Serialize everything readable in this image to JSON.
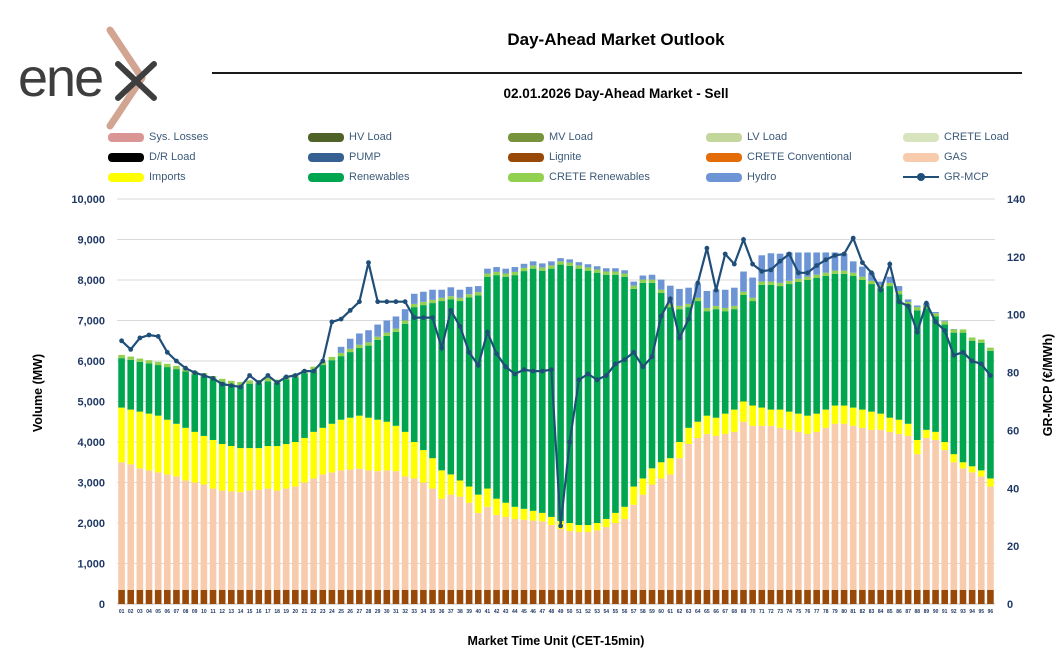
{
  "logo": {
    "text": "ene"
  },
  "header": {
    "title": "Day-Ahead Market Outlook",
    "subtitle": "02.01.2026  Day-Ahead Market - Sell"
  },
  "legend": {
    "items": [
      {
        "label": "Sys. Losses",
        "color": "#D99694",
        "type": "swatch"
      },
      {
        "label": "HV Load",
        "color": "#4F6228",
        "type": "swatch"
      },
      {
        "label": "MV Load",
        "color": "#77933C",
        "type": "swatch"
      },
      {
        "label": "LV Load",
        "color": "#C3D69B",
        "type": "swatch"
      },
      {
        "label": "CRETE Load",
        "color": "#D7E4BD",
        "type": "swatch"
      },
      {
        "label": "D/R Load",
        "color": "#000000",
        "type": "swatch"
      },
      {
        "label": "PUMP",
        "color": "#376092",
        "type": "swatch"
      },
      {
        "label": "Lignite",
        "color": "#984807",
        "type": "swatch"
      },
      {
        "label": "CRETE Conventional",
        "color": "#E36C09",
        "type": "swatch"
      },
      {
        "label": "GAS",
        "color": "#F8CBAD",
        "type": "swatch"
      },
      {
        "label": "Imports",
        "color": "#FFFF00",
        "type": "swatch"
      },
      {
        "label": "Renewables",
        "color": "#00A64F",
        "type": "swatch"
      },
      {
        "label": "CRETE Renewables",
        "color": "#92D050",
        "type": "swatch"
      },
      {
        "label": "Hydro",
        "color": "#6D95D5",
        "type": "swatch"
      },
      {
        "label": "GR-MCP",
        "color": "#1F4E79",
        "type": "line"
      }
    ]
  },
  "chart_data": {
    "type": "bar",
    "subtype": "stacked-bars-with-line",
    "grid": true,
    "x_label": "Market Time Unit (CET-15min)",
    "y_left": {
      "title": "Volume (MW)",
      "min": 0,
      "max": 10000,
      "step": 1000
    },
    "y_right": {
      "title": "GR-MCP (€/MWh)",
      "min": 0,
      "max": 140,
      "step": 20
    },
    "categories": [
      "01",
      "02",
      "03",
      "04",
      "05",
      "06",
      "07",
      "08",
      "09",
      "10",
      "11",
      "12",
      "13",
      "14",
      "15",
      "16",
      "17",
      "18",
      "19",
      "20",
      "21",
      "22",
      "23",
      "24",
      "25",
      "26",
      "27",
      "28",
      "29",
      "30",
      "31",
      "32",
      "33",
      "34",
      "35",
      "36",
      "37",
      "38",
      "39",
      "40",
      "41",
      "42",
      "43",
      "44",
      "45",
      "46",
      "47",
      "48",
      "49",
      "50",
      "51",
      "52",
      "53",
      "54",
      "55",
      "56",
      "57",
      "58",
      "59",
      "60",
      "61",
      "62",
      "63",
      "64",
      "65",
      "66",
      "67",
      "68",
      "69",
      "70",
      "71",
      "72",
      "73",
      "74",
      "75",
      "76",
      "77",
      "78",
      "79",
      "80",
      "81",
      "82",
      "83",
      "84",
      "85",
      "86",
      "87",
      "88",
      "89",
      "90",
      "91",
      "92",
      "93",
      "94",
      "95",
      "96"
    ],
    "bar_series": [
      {
        "name": "Lignite",
        "color": "#984807",
        "values": [
          350,
          350,
          350,
          350,
          350,
          350,
          350,
          350,
          350,
          350,
          350,
          350,
          350,
          350,
          350,
          350,
          350,
          350,
          350,
          350,
          350,
          350,
          350,
          350,
          350,
          350,
          350,
          350,
          350,
          350,
          350,
          350,
          350,
          350,
          350,
          350,
          350,
          350,
          350,
          350,
          350,
          350,
          350,
          350,
          350,
          350,
          350,
          350,
          350,
          350,
          350,
          350,
          350,
          350,
          350,
          350,
          350,
          350,
          350,
          350,
          350,
          350,
          350,
          350,
          350,
          350,
          350,
          350,
          350,
          350,
          350,
          350,
          350,
          350,
          350,
          350,
          350,
          350,
          350,
          350,
          350,
          350,
          350,
          350,
          350,
          350,
          350,
          350,
          350,
          350,
          350,
          350,
          350,
          350,
          350,
          350
        ]
      },
      {
        "name": "GAS",
        "color": "#F8CBAD",
        "values": [
          3150,
          3100,
          3000,
          2950,
          2900,
          2850,
          2800,
          2700,
          2650,
          2600,
          2500,
          2450,
          2430,
          2410,
          2450,
          2470,
          2500,
          2450,
          2500,
          2550,
          2650,
          2750,
          2850,
          2900,
          2950,
          2970,
          2990,
          2950,
          2930,
          2950,
          2930,
          2800,
          2750,
          2650,
          2500,
          2250,
          2350,
          2300,
          2150,
          1900,
          2050,
          1850,
          1800,
          1750,
          1730,
          1710,
          1690,
          1600,
          1500,
          1450,
          1430,
          1430,
          1470,
          1550,
          1650,
          1750,
          2100,
          2350,
          2600,
          2750,
          2850,
          3250,
          3600,
          3750,
          3850,
          3800,
          3850,
          3900,
          4150,
          4050,
          4050,
          4050,
          4000,
          3950,
          3900,
          3850,
          3900,
          4000,
          4100,
          4100,
          4050,
          4000,
          3950,
          3950,
          3900,
          3850,
          3800,
          3350,
          3750,
          3700,
          3450,
          3150,
          3000,
          2900,
          2800,
          2550
        ]
      },
      {
        "name": "Imports",
        "color": "#FFFF00",
        "values": [
          1350,
          1350,
          1400,
          1400,
          1400,
          1350,
          1300,
          1300,
          1250,
          1200,
          1200,
          1150,
          1120,
          1090,
          1050,
          1030,
          1050,
          1100,
          1100,
          1100,
          1100,
          1150,
          1150,
          1200,
          1250,
          1280,
          1310,
          1300,
          1270,
          1200,
          1120,
          1100,
          900,
          800,
          750,
          700,
          500,
          400,
          400,
          450,
          450,
          400,
          350,
          300,
          270,
          240,
          210,
          200,
          200,
          200,
          170,
          170,
          180,
          200,
          250,
          300,
          450,
          400,
          400,
          400,
          400,
          400,
          400,
          400,
          450,
          450,
          500,
          550,
          500,
          500,
          450,
          400,
          450,
          450,
          450,
          450,
          450,
          450,
          450,
          450,
          450,
          450,
          450,
          400,
          350,
          350,
          300,
          350,
          200,
          200,
          200,
          200,
          150,
          150,
          150,
          200
        ]
      },
      {
        "name": "Renewables",
        "color": "#00A64F",
        "values": [
          1220,
          1230,
          1230,
          1240,
          1250,
          1300,
          1350,
          1390,
          1420,
          1470,
          1500,
          1530,
          1530,
          1550,
          1590,
          1600,
          1600,
          1560,
          1600,
          1600,
          1600,
          1530,
          1550,
          1570,
          1570,
          1620,
          1670,
          1780,
          1970,
          2120,
          2320,
          2670,
          3330,
          3580,
          3830,
          4180,
          4320,
          4430,
          4670,
          4920,
          5230,
          5520,
          5580,
          5720,
          5870,
          5980,
          5980,
          6130,
          6330,
          6350,
          6330,
          6280,
          6180,
          6030,
          5880,
          5680,
          4880,
          4830,
          4580,
          4180,
          3730,
          3280,
          2980,
          2980,
          2580,
          2680,
          2530,
          2480,
          2630,
          2580,
          3030,
          3080,
          3050,
          3150,
          3250,
          3350,
          3350,
          3300,
          3250,
          3250,
          3250,
          3200,
          3150,
          3100,
          3250,
          3100,
          2930,
          3200,
          3000,
          2850,
          2900,
          3000,
          3200,
          3100,
          3150,
          3150
        ]
      },
      {
        "name": "CRETE Renewables",
        "color": "#92D050",
        "values": [
          80,
          80,
          80,
          80,
          80,
          80,
          80,
          80,
          80,
          80,
          80,
          80,
          80,
          80,
          80,
          80,
          80,
          80,
          80,
          80,
          80,
          80,
          80,
          80,
          80,
          80,
          80,
          80,
          80,
          80,
          80,
          80,
          80,
          80,
          80,
          80,
          80,
          80,
          80,
          80,
          80,
          80,
          80,
          80,
          80,
          80,
          80,
          80,
          80,
          80,
          80,
          80,
          80,
          80,
          80,
          80,
          80,
          80,
          80,
          80,
          80,
          80,
          80,
          80,
          80,
          80,
          80,
          80,
          80,
          80,
          80,
          80,
          80,
          80,
          80,
          80,
          80,
          80,
          80,
          80,
          80,
          80,
          80,
          80,
          80,
          80,
          80,
          80,
          80,
          80,
          80,
          80,
          80,
          80,
          80,
          80
        ]
      },
      {
        "name": "Hydro",
        "color": "#6D95D5",
        "values": [
          0,
          0,
          0,
          0,
          0,
          0,
          0,
          0,
          0,
          0,
          0,
          0,
          0,
          0,
          0,
          0,
          0,
          0,
          0,
          0,
          0,
          0,
          0,
          0,
          150,
          250,
          280,
          300,
          300,
          300,
          300,
          280,
          250,
          250,
          250,
          200,
          220,
          200,
          180,
          150,
          120,
          120,
          120,
          120,
          100,
          100,
          100,
          100,
          80,
          80,
          80,
          80,
          80,
          80,
          80,
          80,
          100,
          100,
          120,
          250,
          450,
          420,
          400,
          350,
          420,
          400,
          450,
          450,
          500,
          500,
          650,
          700,
          720,
          700,
          650,
          600,
          550,
          500,
          450,
          420,
          280,
          250,
          200,
          80,
          150,
          120,
          60,
          40,
          40,
          30,
          20,
          10,
          0,
          0,
          0,
          0
        ]
      }
    ],
    "line_series": {
      "name": "GR-MCP",
      "color": "#1F4E79",
      "values": [
        91,
        88,
        92,
        93,
        92.5,
        87,
        84,
        81.5,
        80,
        79,
        78,
        76,
        75.5,
        75,
        79,
        76.5,
        79,
        76.5,
        78.5,
        79,
        80.5,
        80.5,
        84,
        97.5,
        98.5,
        101.5,
        104.5,
        118,
        104.5,
        104.5,
        104.5,
        104.5,
        99,
        99,
        99,
        88.5,
        101.5,
        96,
        87,
        82.5,
        94,
        86.5,
        82,
        79.5,
        81,
        80.5,
        80.5,
        81,
        27,
        56,
        77.5,
        79.5,
        77.5,
        79,
        83,
        84.5,
        87,
        82,
        85.5,
        99.5,
        105.5,
        92,
        98.5,
        111,
        123,
        108.5,
        121,
        117.5,
        126,
        117.5,
        115,
        115.5,
        118.5,
        121,
        114.5,
        114.5,
        117,
        119,
        120.5,
        121,
        126.5,
        118,
        114.5,
        108.5,
        117.5,
        104.5,
        103,
        94,
        104,
        97.5,
        94.5,
        86,
        87,
        84,
        83,
        79
      ]
    }
  },
  "colors": {
    "grid": "#D9D9D9",
    "axis_line": "#BFBFBF",
    "tick_text": "#1F3864",
    "legend_text": "#3C5A78",
    "logo_text": "#3E3E3E",
    "logo_chevron": "#D2A492"
  }
}
